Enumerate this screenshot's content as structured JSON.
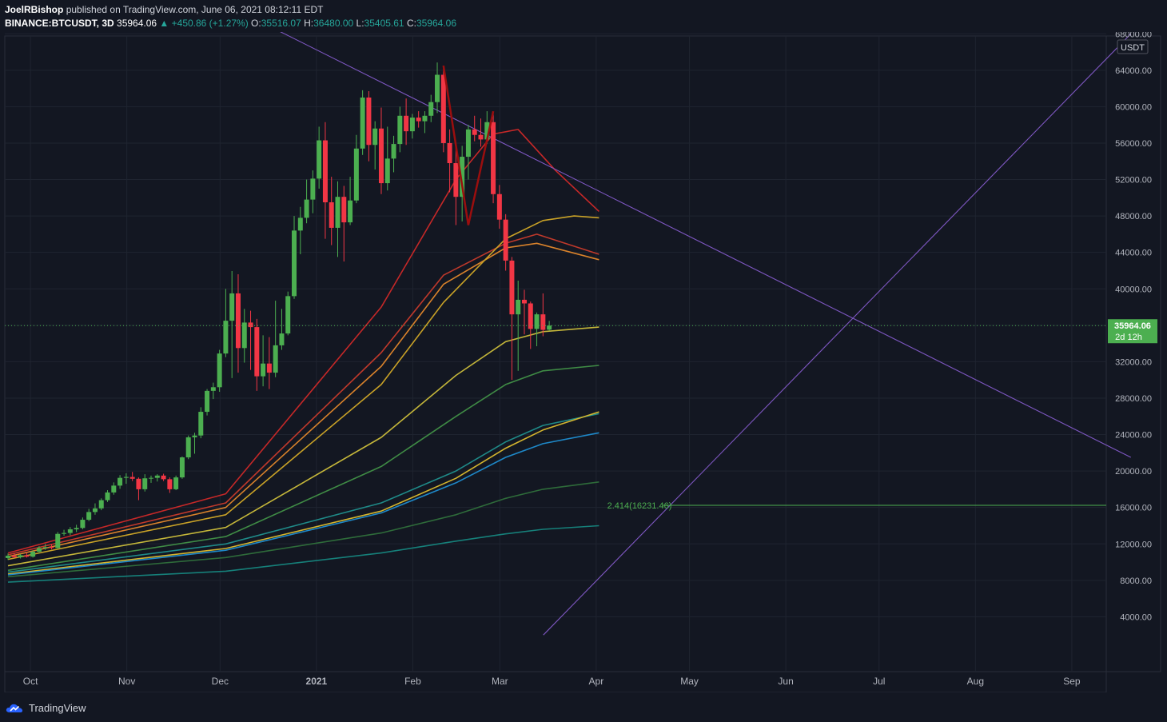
{
  "header": {
    "author": "JoelRBishop",
    "published_text": "published on TradingView.com, June 06, 2021 08:12:11 EDT",
    "symbol": "BINANCE:BTCUSDT, 3D",
    "last": "35964.06",
    "change": "▲ +450.86 (+1.27%)",
    "o_label": "O:",
    "o_val": "35516.07",
    "h_label": "H:",
    "h_val": "36480.00",
    "l_label": "L:",
    "l_val": "35405.61",
    "c_label": "C:",
    "c_val": "35964.06"
  },
  "footer": {
    "brand": "TradingView"
  },
  "colors": {
    "bg": "#131722",
    "up": "#26a69a",
    "candle_up": "#4caf50",
    "candle_down": "#f23645",
    "grid": "#1f2430"
  },
  "chart_data": {
    "type": "candlestick",
    "currency": "USDT",
    "price_axis": {
      "min": 4000,
      "max": 68000,
      "step": 4000,
      "tick_format": "0.00"
    },
    "time_axis_labels": [
      "Oct",
      "Nov",
      "Dec",
      "2021",
      "Feb",
      "Mar",
      "Apr",
      "May",
      "Jun",
      "Jul",
      "Aug",
      "Sep"
    ],
    "last_price": {
      "value": 35964.06,
      "label": "35964.06",
      "countdown": "2d 12h"
    },
    "candles": [
      {
        "o": 10450,
        "h": 10950,
        "l": 10250,
        "c": 10700
      },
      {
        "o": 10700,
        "h": 11000,
        "l": 10450,
        "c": 10550
      },
      {
        "o": 10550,
        "h": 10900,
        "l": 10400,
        "c": 10750
      },
      {
        "o": 10750,
        "h": 11100,
        "l": 10500,
        "c": 10600
      },
      {
        "o": 10600,
        "h": 11300,
        "l": 10500,
        "c": 11150
      },
      {
        "o": 11150,
        "h": 11750,
        "l": 11000,
        "c": 11550
      },
      {
        "o": 11550,
        "h": 12000,
        "l": 11350,
        "c": 11650
      },
      {
        "o": 11650,
        "h": 11950,
        "l": 11400,
        "c": 11550
      },
      {
        "o": 11550,
        "h": 13300,
        "l": 11450,
        "c": 13100
      },
      {
        "o": 13100,
        "h": 13550,
        "l": 12900,
        "c": 13200
      },
      {
        "o": 13200,
        "h": 13850,
        "l": 12950,
        "c": 13600
      },
      {
        "o": 13600,
        "h": 14100,
        "l": 13300,
        "c": 13750
      },
      {
        "o": 13750,
        "h": 14900,
        "l": 13600,
        "c": 14650
      },
      {
        "o": 14650,
        "h": 15850,
        "l": 14500,
        "c": 15500
      },
      {
        "o": 15500,
        "h": 16450,
        "l": 15200,
        "c": 15900
      },
      {
        "o": 15900,
        "h": 17000,
        "l": 15700,
        "c": 16800
      },
      {
        "o": 16800,
        "h": 17900,
        "l": 16600,
        "c": 17650
      },
      {
        "o": 17650,
        "h": 18750,
        "l": 17400,
        "c": 18400
      },
      {
        "o": 18400,
        "h": 19550,
        "l": 18050,
        "c": 19250
      },
      {
        "o": 19250,
        "h": 19750,
        "l": 18600,
        "c": 19350
      },
      {
        "o": 19350,
        "h": 19900,
        "l": 18900,
        "c": 19150
      },
      {
        "o": 19150,
        "h": 19300,
        "l": 16800,
        "c": 18000
      },
      {
        "o": 18000,
        "h": 19650,
        "l": 17750,
        "c": 19200
      },
      {
        "o": 19200,
        "h": 19500,
        "l": 18700,
        "c": 19250
      },
      {
        "o": 19250,
        "h": 19650,
        "l": 18850,
        "c": 19500
      },
      {
        "o": 19500,
        "h": 19700,
        "l": 18900,
        "c": 19100
      },
      {
        "o": 19100,
        "h": 19300,
        "l": 17600,
        "c": 18000
      },
      {
        "o": 18000,
        "h": 19500,
        "l": 17900,
        "c": 19300
      },
      {
        "o": 19300,
        "h": 21600,
        "l": 19150,
        "c": 21500
      },
      {
        "o": 21500,
        "h": 23900,
        "l": 21300,
        "c": 23700
      },
      {
        "o": 23700,
        "h": 24200,
        "l": 21900,
        "c": 23900
      },
      {
        "o": 23900,
        "h": 27000,
        "l": 23600,
        "c": 26500
      },
      {
        "o": 26500,
        "h": 29000,
        "l": 26100,
        "c": 28800
      },
      {
        "o": 28800,
        "h": 29700,
        "l": 27900,
        "c": 29200
      },
      {
        "o": 29200,
        "h": 33300,
        "l": 28700,
        "c": 32900
      },
      {
        "o": 32900,
        "h": 40000,
        "l": 32500,
        "c": 36500
      },
      {
        "o": 36500,
        "h": 41950,
        "l": 30200,
        "c": 39500
      },
      {
        "o": 39500,
        "h": 41600,
        "l": 30800,
        "c": 33500
      },
      {
        "o": 33500,
        "h": 37800,
        "l": 31900,
        "c": 36300
      },
      {
        "o": 36300,
        "h": 37600,
        "l": 31100,
        "c": 35800
      },
      {
        "o": 35800,
        "h": 36700,
        "l": 28800,
        "c": 30400
      },
      {
        "o": 30400,
        "h": 34900,
        "l": 29300,
        "c": 31800
      },
      {
        "o": 31800,
        "h": 34700,
        "l": 29000,
        "c": 30800
      },
      {
        "o": 30800,
        "h": 38700,
        "l": 30300,
        "c": 33800
      },
      {
        "o": 33800,
        "h": 37800,
        "l": 33300,
        "c": 35100
      },
      {
        "o": 35100,
        "h": 39700,
        "l": 34900,
        "c": 39200
      },
      {
        "o": 39200,
        "h": 48000,
        "l": 38900,
        "c": 46400
      },
      {
        "o": 46400,
        "h": 49000,
        "l": 43800,
        "c": 47800
      },
      {
        "o": 47800,
        "h": 52000,
        "l": 47200,
        "c": 49800
      },
      {
        "o": 49800,
        "h": 53000,
        "l": 48300,
        "c": 52100
      },
      {
        "o": 52100,
        "h": 57800,
        "l": 51000,
        "c": 56300
      },
      {
        "o": 56300,
        "h": 58300,
        "l": 45500,
        "c": 49500
      },
      {
        "o": 49500,
        "h": 52300,
        "l": 44800,
        "c": 46700
      },
      {
        "o": 46700,
        "h": 51800,
        "l": 43500,
        "c": 50100
      },
      {
        "o": 50100,
        "h": 51300,
        "l": 43000,
        "c": 47300
      },
      {
        "o": 47300,
        "h": 52300,
        "l": 47000,
        "c": 49700
      },
      {
        "o": 49700,
        "h": 56900,
        "l": 49400,
        "c": 55400
      },
      {
        "o": 55400,
        "h": 61800,
        "l": 54700,
        "c": 61000
      },
      {
        "o": 61000,
        "h": 61700,
        "l": 54000,
        "c": 55800
      },
      {
        "o": 55800,
        "h": 58400,
        "l": 53100,
        "c": 57600
      },
      {
        "o": 57600,
        "h": 59900,
        "l": 50400,
        "c": 51600
      },
      {
        "o": 51600,
        "h": 57800,
        "l": 50800,
        "c": 54300
      },
      {
        "o": 54300,
        "h": 56800,
        "l": 52800,
        "c": 55900
      },
      {
        "o": 55900,
        "h": 60000,
        "l": 55000,
        "c": 59000
      },
      {
        "o": 59000,
        "h": 60900,
        "l": 55800,
        "c": 57300
      },
      {
        "o": 57300,
        "h": 59200,
        "l": 56500,
        "c": 58800
      },
      {
        "o": 58800,
        "h": 59500,
        "l": 57700,
        "c": 58400
      },
      {
        "o": 58400,
        "h": 59500,
        "l": 57100,
        "c": 59000
      },
      {
        "o": 59000,
        "h": 61300,
        "l": 58300,
        "c": 60500
      },
      {
        "o": 60500,
        "h": 64850,
        "l": 59300,
        "c": 63500
      },
      {
        "o": 63500,
        "h": 64200,
        "l": 55000,
        "c": 56000
      },
      {
        "o": 56000,
        "h": 57500,
        "l": 50600,
        "c": 53800
      },
      {
        "o": 53800,
        "h": 56000,
        "l": 47000,
        "c": 50100
      },
      {
        "o": 50100,
        "h": 55700,
        "l": 47400,
        "c": 54500
      },
      {
        "o": 54500,
        "h": 58000,
        "l": 52000,
        "c": 57500
      },
      {
        "o": 57500,
        "h": 59000,
        "l": 56200,
        "c": 56900
      },
      {
        "o": 56900,
        "h": 58700,
        "l": 55600,
        "c": 56400
      },
      {
        "o": 56400,
        "h": 59500,
        "l": 55900,
        "c": 58300
      },
      {
        "o": 58300,
        "h": 59300,
        "l": 49400,
        "c": 50400
      },
      {
        "o": 50400,
        "h": 51400,
        "l": 46600,
        "c": 47600
      },
      {
        "o": 47600,
        "h": 48200,
        "l": 42000,
        "c": 43100
      },
      {
        "o": 43100,
        "h": 43500,
        "l": 30000,
        "c": 37200
      },
      {
        "o": 37200,
        "h": 40900,
        "l": 31000,
        "c": 38800
      },
      {
        "o": 38800,
        "h": 39900,
        "l": 35000,
        "c": 38400
      },
      {
        "o": 38400,
        "h": 38600,
        "l": 33400,
        "c": 35600
      },
      {
        "o": 35600,
        "h": 37400,
        "l": 33700,
        "c": 37200
      },
      {
        "o": 37200,
        "h": 39500,
        "l": 34800,
        "c": 35500
      },
      {
        "o": 35516.07,
        "h": 36480,
        "l": 35405.61,
        "c": 35964.06
      }
    ],
    "moving_averages": [
      {
        "color": "#c62828",
        "points": [
          [
            0,
            11000
          ],
          [
            35,
            17500
          ],
          [
            60,
            38000
          ],
          [
            72,
            52000
          ],
          [
            78,
            57000
          ],
          [
            82,
            57500
          ],
          [
            88,
            53000
          ],
          [
            95,
            48500
          ]
        ]
      },
      {
        "color": "#c0392b",
        "points": [
          [
            0,
            10800
          ],
          [
            35,
            16500
          ],
          [
            60,
            33000
          ],
          [
            70,
            41500
          ],
          [
            80,
            45000
          ],
          [
            85,
            46000
          ],
          [
            95,
            43800
          ]
        ]
      },
      {
        "color": "#d9822b",
        "points": [
          [
            0,
            10600
          ],
          [
            35,
            16000
          ],
          [
            60,
            31500
          ],
          [
            70,
            40500
          ],
          [
            80,
            44500
          ],
          [
            85,
            45000
          ],
          [
            95,
            43200
          ]
        ]
      },
      {
        "color": "#c9a227",
        "points": [
          [
            0,
            10300
          ],
          [
            35,
            15200
          ],
          [
            60,
            29500
          ],
          [
            70,
            38500
          ],
          [
            80,
            45500
          ],
          [
            86,
            47500
          ],
          [
            91,
            48000
          ],
          [
            95,
            47800
          ]
        ]
      },
      {
        "color": "#c4b63a",
        "points": [
          [
            0,
            9600
          ],
          [
            35,
            13800
          ],
          [
            60,
            23700
          ],
          [
            72,
            30500
          ],
          [
            80,
            34200
          ],
          [
            86,
            35300
          ],
          [
            95,
            35800
          ]
        ]
      },
      {
        "color": "#3f8b45",
        "points": [
          [
            0,
            9100
          ],
          [
            35,
            12800
          ],
          [
            60,
            20500
          ],
          [
            72,
            26000
          ],
          [
            80,
            29500
          ],
          [
            86,
            31000
          ],
          [
            95,
            31600
          ]
        ]
      },
      {
        "color": "#1f8a88",
        "points": [
          [
            0,
            8900
          ],
          [
            35,
            12000
          ],
          [
            60,
            16500
          ],
          [
            72,
            20000
          ],
          [
            80,
            23200
          ],
          [
            86,
            25000
          ],
          [
            95,
            26300
          ]
        ]
      },
      {
        "color": "#d4b52e",
        "points": [
          [
            0,
            8700
          ],
          [
            35,
            11500
          ],
          [
            60,
            15600
          ],
          [
            72,
            19200
          ],
          [
            80,
            22500
          ],
          [
            86,
            24500
          ],
          [
            95,
            26500
          ]
        ]
      },
      {
        "color": "#1e88c8",
        "points": [
          [
            0,
            8600
          ],
          [
            35,
            11300
          ],
          [
            60,
            15400
          ],
          [
            72,
            18700
          ],
          [
            80,
            21500
          ],
          [
            86,
            23000
          ],
          [
            95,
            24200
          ]
        ]
      },
      {
        "color": "#2e6b3a",
        "points": [
          [
            0,
            8400
          ],
          [
            35,
            10500
          ],
          [
            60,
            13200
          ],
          [
            72,
            15200
          ],
          [
            80,
            17000
          ],
          [
            86,
            18000
          ],
          [
            95,
            18800
          ]
        ]
      },
      {
        "color": "#16807a",
        "points": [
          [
            0,
            7800
          ],
          [
            35,
            9000
          ],
          [
            60,
            11000
          ],
          [
            72,
            12300
          ],
          [
            80,
            13100
          ],
          [
            86,
            13600
          ],
          [
            95,
            14000
          ]
        ]
      }
    ],
    "trendlines": [
      {
        "color": "#7e57c2",
        "from": {
          "date": "2020-12-10",
          "price": 70000
        },
        "to": {
          "date": "2021-09-20",
          "price": 21500
        }
      },
      {
        "color": "#7e57c2",
        "from": {
          "date": "2021-03-15",
          "price": 2000
        },
        "to": {
          "date": "2021-09-20",
          "price": 68000
        }
      }
    ],
    "pattern_line": {
      "color": "#9b0e0e",
      "points": [
        [
          70,
          64500
        ],
        [
          74,
          47000
        ],
        [
          78,
          59500
        ]
      ]
    },
    "fib_level": {
      "label": "2.414(16231.46)",
      "value": 16231.46,
      "color": "#4caf50"
    }
  }
}
